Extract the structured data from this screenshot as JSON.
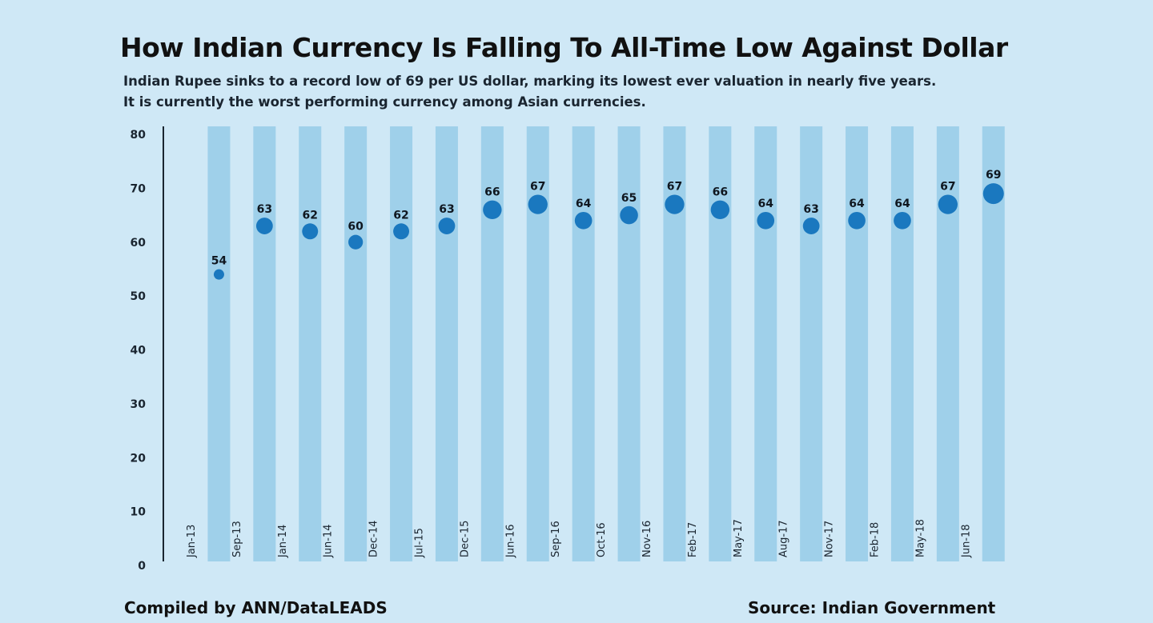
{
  "title": "How Indian Currency Is Falling To All-Time Low Against Dollar",
  "subtitle_line1": "Indian Rupee sinks to a record low of 69 per US dollar, marking its lowest ever valuation in nearly five years.",
  "subtitle_line2": "It is currently the worst performing currency among Asian currencies.",
  "footer": {
    "compiled": "Compiled by ANN/DataLEADS",
    "source": "Source: Indian Government"
  },
  "colors": {
    "background": "#cfe8f6",
    "column": "#9fd0ea",
    "dot": "#1a78bf",
    "axis": "#1a2530"
  },
  "chart_data": {
    "type": "scatter",
    "categories": [
      "Jan-13",
      "Sep-13",
      "Jan-14",
      "Jun-14",
      "Dec-14",
      "Jul-15",
      "Dec-15",
      "Jun-16",
      "Sep-16",
      "Oct-16",
      "Nov-16",
      "Feb-17",
      "May-17",
      "Aug-17",
      "Nov-17",
      "Feb-18",
      "May-18",
      "Jun-18"
    ],
    "values": [
      54,
      63,
      62,
      60,
      62,
      63,
      66,
      67,
      64,
      65,
      67,
      66,
      64,
      63,
      64,
      64,
      67,
      69
    ],
    "data_labels": [
      "54",
      "63",
      "62",
      "60",
      "62",
      "63",
      "66",
      "67",
      "64",
      "65",
      "67",
      "66",
      "64",
      "63",
      "64",
      "64",
      "67",
      "69"
    ],
    "ylim": [
      0,
      80
    ],
    "yticks": [
      "0",
      "10",
      "20",
      "30",
      "40",
      "50",
      "60",
      "70",
      "80"
    ],
    "grid": false,
    "legend": "none",
    "marker_size_encodes_value": true
  }
}
